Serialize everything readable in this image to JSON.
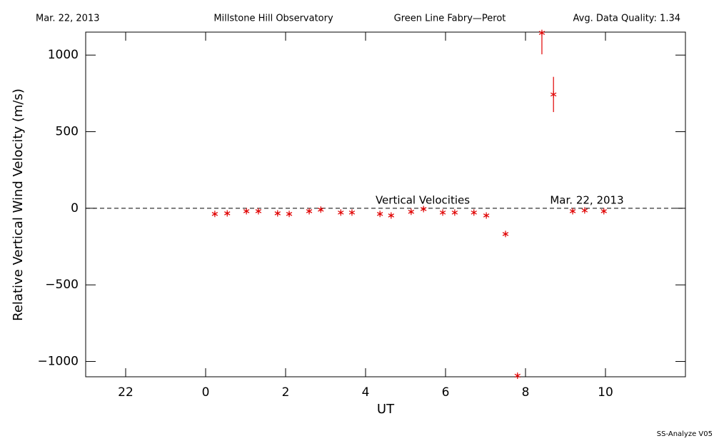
{
  "header": {
    "date": "Mar. 22, 2013",
    "observatory": "Millstone Hill Observatory",
    "instrument": "Green Line Fabry—Perot",
    "quality": "Avg. Data Quality: 1.34"
  },
  "footer": "SS-Analyze V05",
  "chart_data": {
    "type": "scatter",
    "x_label": "UT",
    "y_label": "Relative Vertical Wind Velocity (m/s)",
    "annotations": [
      "Vertical Velocities",
      "Mar. 22, 2013"
    ],
    "hline": 0,
    "xlim": [
      -3,
      12
    ],
    "xticks": [
      {
        "value": -2,
        "label": "22"
      },
      0,
      2,
      4,
      6,
      8,
      10
    ],
    "ylim": [
      -1100,
      1150
    ],
    "yticks": [
      {
        "value": -1000,
        "label": "−1000"
      },
      {
        "value": -500,
        "label": "−500"
      },
      0,
      500,
      1000
    ],
    "series": [
      {
        "color": "#e00000",
        "x": [
          0.23,
          0.54,
          1.02,
          1.32,
          1.8,
          2.09,
          2.59,
          2.88,
          3.38,
          3.66,
          4.36,
          4.64,
          5.14,
          5.45,
          5.93,
          6.23,
          6.71,
          7.02,
          7.5,
          7.8,
          8.41,
          8.7,
          9.18,
          9.48,
          9.96
        ],
        "values": [
          -37,
          -33,
          -19,
          -19,
          -33,
          -37,
          -19,
          -9,
          -28,
          -28,
          -37,
          -47,
          -23,
          -5,
          -28,
          -28,
          -28,
          -47,
          -168,
          -1093,
          1145,
          743,
          -19,
          -14,
          -19
        ],
        "errors": [
          10,
          10,
          10,
          10,
          10,
          10,
          10,
          10,
          10,
          10,
          10,
          10,
          10,
          10,
          10,
          10,
          10,
          10,
          10,
          10,
          140,
          115,
          10,
          10,
          10
        ]
      }
    ]
  }
}
